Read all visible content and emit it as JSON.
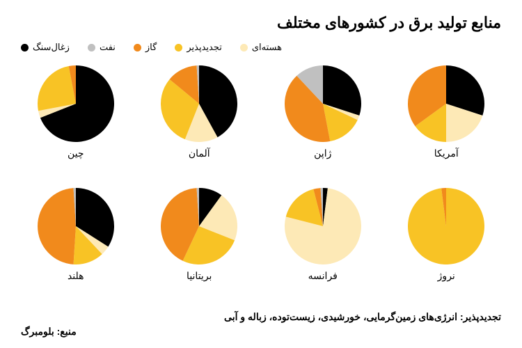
{
  "title": "منابع تولید برق در کشورهای مختلف",
  "title_fontsize": 22,
  "legend_fontsize": 13,
  "label_fontsize": 14,
  "footnote_fontsize": 14,
  "source_fontsize": 14,
  "background_color": "#ffffff",
  "text_color": "#000000",
  "pie_radius": 55,
  "categories": [
    {
      "key": "coal",
      "label": "زغال‌سنگ",
      "color": "#000000"
    },
    {
      "key": "oil",
      "label": "نفت",
      "color": "#c0c0c0"
    },
    {
      "key": "gas",
      "label": "گاز",
      "color": "#f18a1c"
    },
    {
      "key": "renewable",
      "label": "تجدیدپذیر",
      "color": "#f8c325"
    },
    {
      "key": "nuclear",
      "label": "هسته‌ای",
      "color": "#fde9b6"
    }
  ],
  "countries": [
    {
      "name": "آمریکا",
      "slices": [
        {
          "key": "coal",
          "value": 30
        },
        {
          "key": "nuclear",
          "value": 20
        },
        {
          "key": "renewable",
          "value": 15
        },
        {
          "key": "gas",
          "value": 35
        }
      ]
    },
    {
      "name": "ژاپن",
      "slices": [
        {
          "key": "coal",
          "value": 30
        },
        {
          "key": "nuclear",
          "value": 2
        },
        {
          "key": "renewable",
          "value": 15
        },
        {
          "key": "gas",
          "value": 41
        },
        {
          "key": "oil",
          "value": 12
        }
      ]
    },
    {
      "name": "آلمان",
      "slices": [
        {
          "key": "coal",
          "value": 42
        },
        {
          "key": "nuclear",
          "value": 14
        },
        {
          "key": "renewable",
          "value": 30
        },
        {
          "key": "gas",
          "value": 13
        },
        {
          "key": "oil",
          "value": 1
        }
      ]
    },
    {
      "name": "چین",
      "slices": [
        {
          "key": "coal",
          "value": 69
        },
        {
          "key": "nuclear",
          "value": 3
        },
        {
          "key": "renewable",
          "value": 25
        },
        {
          "key": "gas",
          "value": 3
        }
      ]
    },
    {
      "name": "نروژ",
      "slices": [
        {
          "key": "renewable",
          "value": 98
        },
        {
          "key": "gas",
          "value": 2
        }
      ]
    },
    {
      "name": "فرانسه",
      "slices": [
        {
          "key": "coal",
          "value": 2
        },
        {
          "key": "nuclear",
          "value": 77
        },
        {
          "key": "renewable",
          "value": 17
        },
        {
          "key": "gas",
          "value": 3
        },
        {
          "key": "oil",
          "value": 1
        }
      ]
    },
    {
      "name": "بریتانیا",
      "slices": [
        {
          "key": "coal",
          "value": 10
        },
        {
          "key": "nuclear",
          "value": 21
        },
        {
          "key": "renewable",
          "value": 26
        },
        {
          "key": "gas",
          "value": 42
        },
        {
          "key": "oil",
          "value": 1
        }
      ]
    },
    {
      "name": "هلند",
      "slices": [
        {
          "key": "coal",
          "value": 34
        },
        {
          "key": "nuclear",
          "value": 4
        },
        {
          "key": "renewable",
          "value": 13
        },
        {
          "key": "gas",
          "value": 48
        },
        {
          "key": "oil",
          "value": 1
        }
      ]
    }
  ],
  "footnote": "تجدیدپذیر: انرژی‌های زمین‌گرمایی، خورشیدی، زیست‌توده، زباله و آبی",
  "source": "منبع: بلومبرگ"
}
